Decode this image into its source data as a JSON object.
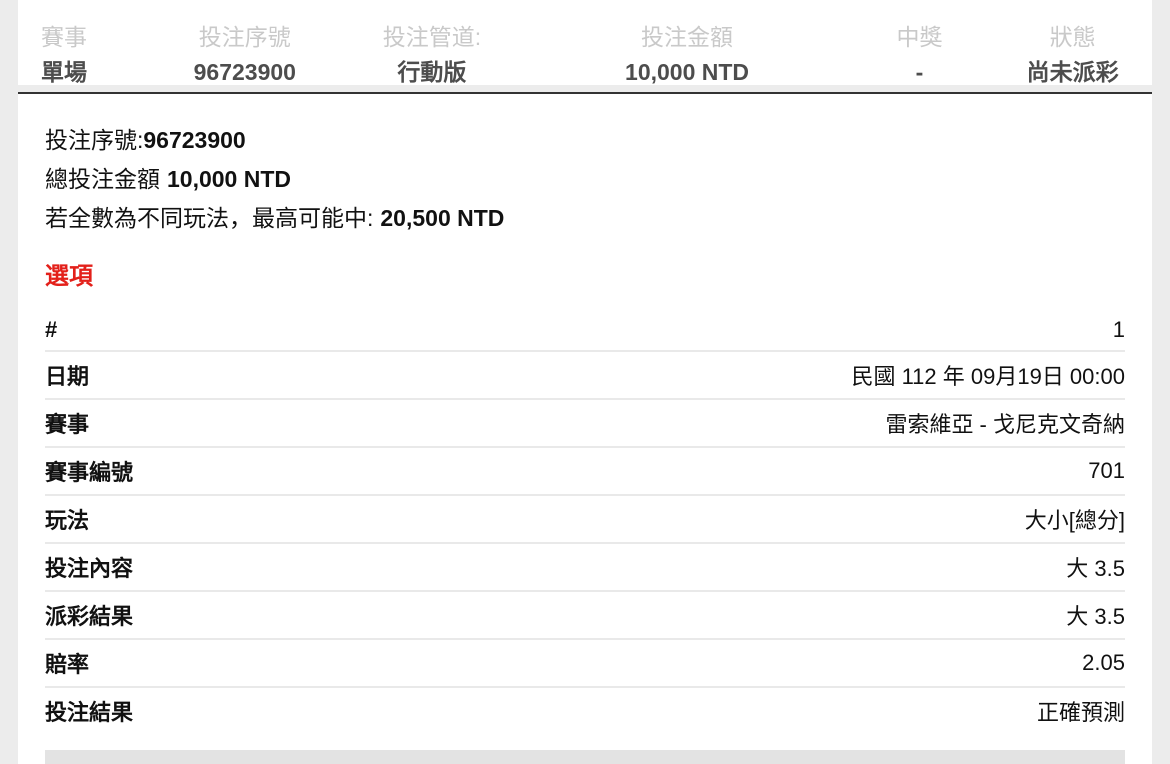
{
  "colors": {
    "page_bg": "#ececec",
    "card_bg": "#ffffff",
    "dark_border": "#333333",
    "muted_label": "#c9c9c9",
    "value_gray": "#4d4d4d",
    "ink": "#111111",
    "accent_red": "#e3201a",
    "hairline": "#e9e9e9",
    "thick_bar": "#e3e3e3"
  },
  "summary": {
    "columns": [
      {
        "label": "賽事",
        "value": "單場"
      },
      {
        "label": "投注序號",
        "value": "96723900"
      },
      {
        "label": "投注管道:",
        "value": "行動版"
      },
      {
        "label": "投注金額",
        "value": "10,000 NTD"
      },
      {
        "label": "中獎",
        "value": "-"
      },
      {
        "label": "狀態",
        "value": "尚未派彩"
      }
    ]
  },
  "detail": {
    "serial_label": "投注序號:",
    "serial_value": "96723900",
    "total_label": "總投注金額",
    "total_value": "10,000 NTD",
    "max_win_label": "若全數為不同玩法，最高可能中:",
    "max_win_value": "20,500 NTD",
    "options_title": "選項",
    "rows": [
      {
        "label": "#",
        "value": "1"
      },
      {
        "label": "日期",
        "value": "民國 112 年 09月19日 00:00"
      },
      {
        "label": "賽事",
        "value": "雷索維亞 - 戈尼克文奇納"
      },
      {
        "label": "賽事編號",
        "value": "701"
      },
      {
        "label": "玩法",
        "value": "大小[總分]"
      },
      {
        "label": "投注內容",
        "value": "大 3.5"
      },
      {
        "label": "派彩結果",
        "value": "大 3.5"
      },
      {
        "label": "賠率",
        "value": "2.05"
      },
      {
        "label": "投注結果",
        "value": "正確預測"
      }
    ]
  }
}
